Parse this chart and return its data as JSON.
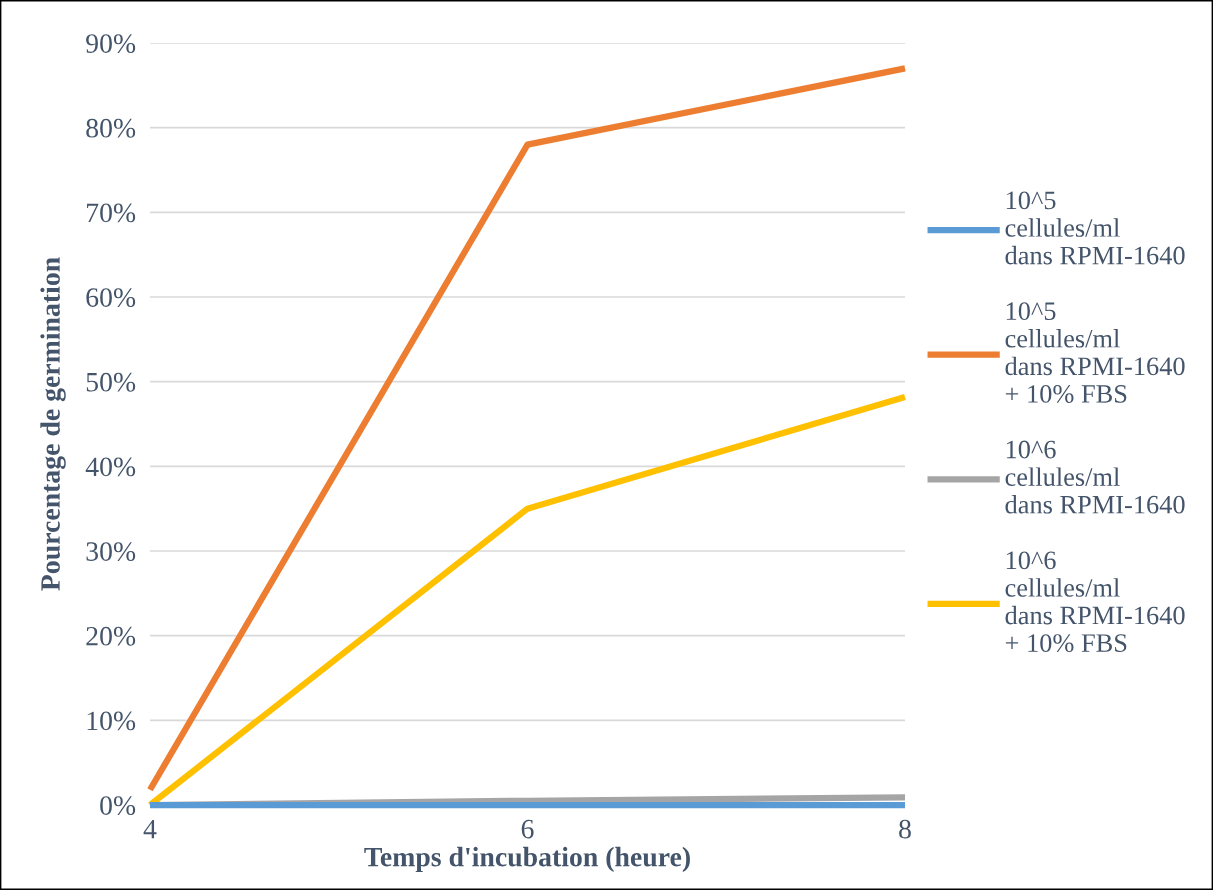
{
  "chart_data": {
    "type": "line",
    "xlabel": "Temps d'incubation (heure)",
    "ylabel": "Pourcentage de germination",
    "x": [
      4,
      6,
      8
    ],
    "xlim": [
      4,
      8
    ],
    "xticks": [
      4,
      6,
      8
    ],
    "ylim": [
      0,
      90
    ],
    "yticks": [
      {
        "value": 0,
        "label": "0%"
      },
      {
        "value": 10,
        "label": "10%"
      },
      {
        "value": 20,
        "label": "20%"
      },
      {
        "value": 30,
        "label": "30%"
      },
      {
        "value": 40,
        "label": "40%"
      },
      {
        "value": 50,
        "label": "50%"
      },
      {
        "value": 60,
        "label": "60%"
      },
      {
        "value": 70,
        "label": "70%"
      },
      {
        "value": 80,
        "label": "80%"
      },
      {
        "value": 90,
        "label": "90%"
      }
    ],
    "grid": "y",
    "legend": "right",
    "marker": "none",
    "line_style": "solid",
    "series": [
      {
        "name": "10^5 cellules/ml dans RPMI-1640",
        "color": "#5b9bd5",
        "values": [
          0,
          0,
          0
        ]
      },
      {
        "name": "10^5 cellules/ml dans RPMI-1640 + 10% FBS",
        "color": "#ed7d31",
        "values": [
          1.8,
          78,
          87
        ]
      },
      {
        "name": "10^6 cellules/ml dans RPMI-1640",
        "color": "#a5a5a5",
        "values": [
          0,
          0.5,
          0.9
        ]
      },
      {
        "name": "10^6 cellules/ml dans RPMI-1640 + 10% FBS",
        "color": "#ffc000",
        "values": [
          0,
          35,
          48.2
        ]
      }
    ]
  }
}
